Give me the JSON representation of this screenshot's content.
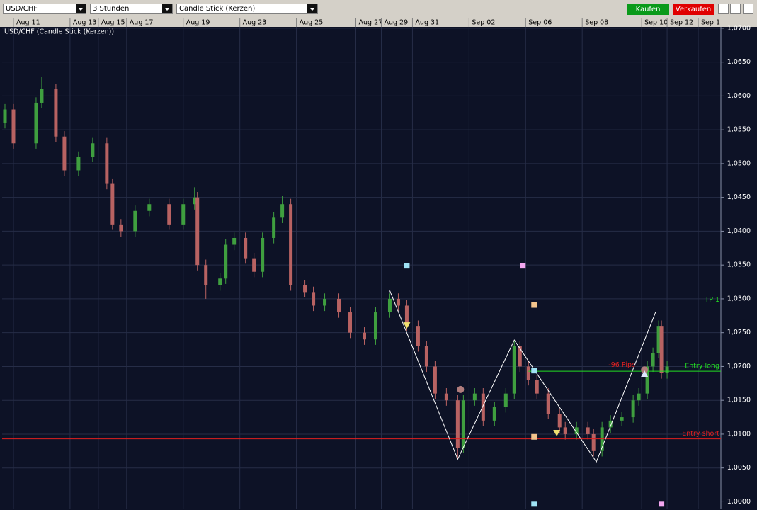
{
  "toolbar": {
    "symbol": "USD/CHF",
    "interval": "3 Stunden",
    "chart_style": "Candle Stick (Kerzen)",
    "buy": "Kaufen",
    "sell": "Verkaufen"
  },
  "chart_data": {
    "type": "candlestick",
    "title": "USD/CHF (Candle Stick (Kerzen))",
    "x": [
      1,
      4,
      12,
      14,
      19,
      22,
      27,
      32,
      37,
      39,
      42,
      47,
      52,
      59,
      64,
      68,
      69,
      72,
      77,
      79,
      82,
      86,
      89,
      92,
      96,
      99,
      102,
      107,
      110,
      114,
      119,
      123,
      128,
      132,
      137,
      140,
      143,
      147,
      150,
      153,
      157,
      161,
      163,
      167,
      170,
      174,
      178,
      181,
      183,
      186,
      189,
      193,
      197,
      199,
      203,
      207,
      209,
      212,
      215,
      219,
      223,
      225,
      228,
      230,
      232,
      233,
      235
    ],
    "open": [
      1.056,
      1.058,
      1.053,
      1.059,
      1.061,
      1.054,
      1.049,
      1.051,
      1.053,
      1.047,
      1.041,
      1.04,
      1.043,
      1.044,
      1.041,
      1.044,
      1.045,
      1.035,
      1.032,
      1.033,
      1.038,
      1.039,
      1.036,
      1.034,
      1.039,
      1.042,
      1.044,
      1.032,
      1.031,
      1.029,
      1.03,
      1.028,
      1.025,
      1.024,
      1.028,
      1.03,
      1.029,
      1.026,
      1.023,
      1.02,
      1.016,
      1.015,
      1.008,
      1.015,
      1.016,
      1.012,
      1.014,
      1.016,
      1.023,
      1.02,
      1.018,
      1.016,
      1.013,
      1.011,
      1.01,
      1.011,
      1.01,
      1.0075,
      1.011,
      1.012,
      1.0125,
      1.015,
      1.016,
      1.02,
      1.022,
      1.026,
      1.019
    ],
    "high": [
      1.0588,
      1.0588,
      1.0598,
      1.0628,
      1.0618,
      1.0548,
      1.0518,
      1.0538,
      1.0538,
      1.0478,
      1.0418,
      1.0438,
      1.0448,
      1.0448,
      1.0448,
      1.0465,
      1.0458,
      1.0358,
      1.0338,
      1.0388,
      1.0398,
      1.0398,
      1.0368,
      1.0398,
      1.0428,
      1.0452,
      1.0448,
      1.0328,
      1.0318,
      1.0308,
      1.0308,
      1.0288,
      1.0258,
      1.0288,
      1.0308,
      1.0308,
      1.0298,
      1.0268,
      1.0238,
      1.0208,
      1.0168,
      1.0158,
      1.0158,
      1.0168,
      1.0168,
      1.0148,
      1.0168,
      1.0238,
      1.0238,
      1.0208,
      1.0188,
      1.0168,
      1.0138,
      1.0118,
      1.0118,
      1.0118,
      1.0108,
      1.0118,
      1.0128,
      1.0133,
      1.0158,
      1.0168,
      1.0208,
      1.0228,
      1.0268,
      1.0268,
      1.0208
    ],
    "low": [
      1.0552,
      1.0522,
      1.0522,
      1.0582,
      1.0532,
      1.0482,
      1.0482,
      1.0502,
      1.0462,
      1.0402,
      1.0392,
      1.0392,
      1.0422,
      1.0402,
      1.0402,
      1.0432,
      1.0342,
      1.03,
      1.0312,
      1.0322,
      1.0372,
      1.0352,
      1.0332,
      1.0332,
      1.0382,
      1.0412,
      1.0312,
      1.0302,
      1.0282,
      1.0282,
      1.0272,
      1.0242,
      1.0232,
      1.0232,
      1.0272,
      1.0282,
      1.0252,
      1.0222,
      1.0192,
      1.0152,
      1.0142,
      1.0065,
      1.0072,
      1.0142,
      1.0112,
      1.0112,
      1.0132,
      1.0152,
      1.0192,
      1.0172,
      1.0152,
      1.0122,
      1.0102,
      1.0092,
      1.0092,
      1.0092,
      1.0067,
      1.0067,
      1.0102,
      1.0112,
      1.0117,
      1.0142,
      1.0152,
      1.0192,
      1.0212,
      1.0182,
      1.0182
    ],
    "close": [
      1.058,
      1.053,
      1.059,
      1.061,
      1.054,
      1.049,
      1.051,
      1.053,
      1.047,
      1.041,
      1.04,
      1.043,
      1.044,
      1.041,
      1.044,
      1.045,
      1.035,
      1.032,
      1.033,
      1.038,
      1.039,
      1.036,
      1.034,
      1.039,
      1.042,
      1.044,
      1.032,
      1.031,
      1.029,
      1.03,
      1.028,
      1.025,
      1.024,
      1.028,
      1.03,
      1.029,
      1.026,
      1.023,
      1.02,
      1.016,
      1.015,
      1.008,
      1.015,
      1.016,
      1.012,
      1.014,
      1.016,
      1.023,
      1.02,
      1.018,
      1.016,
      1.013,
      1.011,
      1.01,
      1.011,
      1.01,
      1.0075,
      1.011,
      1.012,
      1.0125,
      1.015,
      1.016,
      1.02,
      1.022,
      1.026,
      1.019,
      1.02
    ],
    "up_color": "#3f9f3f",
    "down_color": "#b86262",
    "xlim": [
      0,
      254
    ],
    "xticks": [
      {
        "value": 4,
        "label": "Aug 11"
      },
      {
        "value": 24,
        "label": "Aug 13"
      },
      {
        "value": 34,
        "label": "Aug 15"
      },
      {
        "value": 44,
        "label": "Aug 17"
      },
      {
        "value": 64,
        "label": "Aug 19"
      },
      {
        "value": 84,
        "label": "Aug 23"
      },
      {
        "value": 104,
        "label": "Aug 25"
      },
      {
        "value": 125,
        "label": "Aug 27"
      },
      {
        "value": 134,
        "label": "Aug 29"
      },
      {
        "value": 145,
        "label": "Aug 31"
      },
      {
        "value": 165,
        "label": "Sep 02"
      },
      {
        "value": 185,
        "label": "Sep 06"
      },
      {
        "value": 205,
        "label": "Sep 08"
      },
      {
        "value": 226,
        "label": "Sep 10"
      },
      {
        "value": 235,
        "label": "Sep 12"
      },
      {
        "value": 246,
        "label": "Sep 1"
      }
    ],
    "ylim": [
      0.999,
      1.0702
    ],
    "yticks": [
      {
        "value": 1.0,
        "label": "1,0000"
      },
      {
        "value": 1.005,
        "label": "1,0050"
      },
      {
        "value": 1.01,
        "label": "1,0100"
      },
      {
        "value": 1.015,
        "label": "1,0150"
      },
      {
        "value": 1.02,
        "label": "1,0200"
      },
      {
        "value": 1.025,
        "label": "1,0250"
      },
      {
        "value": 1.03,
        "label": "1,0300"
      },
      {
        "value": 1.035,
        "label": "1,0350"
      },
      {
        "value": 1.04,
        "label": "1,0400"
      },
      {
        "value": 1.045,
        "label": "1,0450"
      },
      {
        "value": 1.05,
        "label": "1,0500"
      },
      {
        "value": 1.055,
        "label": "1,0550"
      },
      {
        "value": 1.06,
        "label": "1,0600"
      },
      {
        "value": 1.065,
        "label": "1,0650"
      },
      {
        "value": 1.07,
        "label": "1,0700"
      }
    ],
    "grid": true,
    "zigzag": {
      "color": "#ffffff",
      "x": [
        137,
        161,
        181,
        210,
        231
      ],
      "y": [
        1.0312,
        1.0063,
        1.0239,
        1.0059,
        1.0281
      ]
    },
    "levels": [
      {
        "label": "TP 1",
        "value": 1.0291,
        "start": 188,
        "color": "#22dd22",
        "dashed": true
      },
      {
        "label": "Entry long",
        "value": 1.0193,
        "start": 186,
        "color": "#22dd22",
        "dashed": false
      },
      {
        "label": "Entry short",
        "value": 1.0093,
        "start": 0,
        "color": "#e02020",
        "dashed": false
      }
    ],
    "annotations": [
      {
        "label": "-96 Pips",
        "x": 219,
        "y": 1.0202,
        "color": "#e02020"
      }
    ],
    "markers": [
      {
        "x": 143,
        "y": 1.0349,
        "shape": "square",
        "color": "#9fe3f5"
      },
      {
        "x": 184,
        "y": 1.0349,
        "shape": "square",
        "color": "#f3a6f0"
      },
      {
        "x": 188,
        "y": 1.0291,
        "shape": "square",
        "color": "#f3c48c"
      },
      {
        "x": 188,
        "y": 1.0194,
        "shape": "square",
        "color": "#9fe3f5"
      },
      {
        "x": 188,
        "y": 1.0096,
        "shape": "square",
        "color": "#f3c48c"
      },
      {
        "x": 188,
        "y": 0.9997,
        "shape": "square",
        "color": "#9fe3f5"
      },
      {
        "x": 233,
        "y": 0.9997,
        "shape": "square",
        "color": "#f3a6f0"
      },
      {
        "x": 162,
        "y": 1.0166,
        "shape": "circle",
        "color": "#b07c7c"
      },
      {
        "x": 227,
        "y": 1.0195,
        "shape": "circle",
        "color": "#b07c7c"
      },
      {
        "x": 143,
        "y": 1.026,
        "shape": "down",
        "color": "#f0e070"
      },
      {
        "x": 196,
        "y": 1.0101,
        "shape": "down",
        "color": "#f0e070"
      },
      {
        "x": 227,
        "y": 1.0189,
        "shape": "up",
        "color": "#dfe6ff"
      }
    ]
  }
}
